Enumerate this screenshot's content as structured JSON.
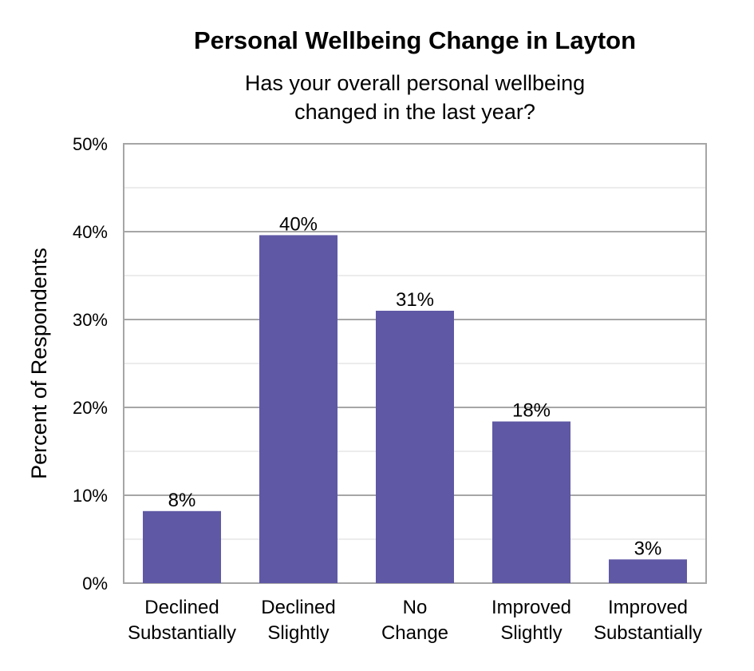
{
  "chart_data": {
    "type": "bar",
    "title": "Personal Wellbeing Change in Layton",
    "subtitle": [
      "Has your overall personal wellbeing",
      "changed in the last year?"
    ],
    "ylabel": "Percent of Respondents",
    "xlabel": "",
    "categories": [
      [
        "Declined",
        "Substantially"
      ],
      [
        "Declined",
        "Slightly"
      ],
      [
        "No",
        "Change"
      ],
      [
        "Improved",
        "Slightly"
      ],
      [
        "Improved",
        "Substantially"
      ]
    ],
    "values": [
      8.2,
      39.6,
      31.0,
      18.4,
      2.7
    ],
    "data_labels": [
      "8%",
      "40%",
      "31%",
      "18%",
      "3%"
    ],
    "ylim": [
      0,
      50
    ],
    "yticks": [
      0,
      10,
      20,
      30,
      40,
      50
    ],
    "ytick_labels": [
      "0%",
      "10%",
      "20%",
      "30%",
      "40%",
      "50%"
    ],
    "grid": "major and minor horizontal",
    "legend": "none",
    "bar_color": "#5f58a5"
  }
}
